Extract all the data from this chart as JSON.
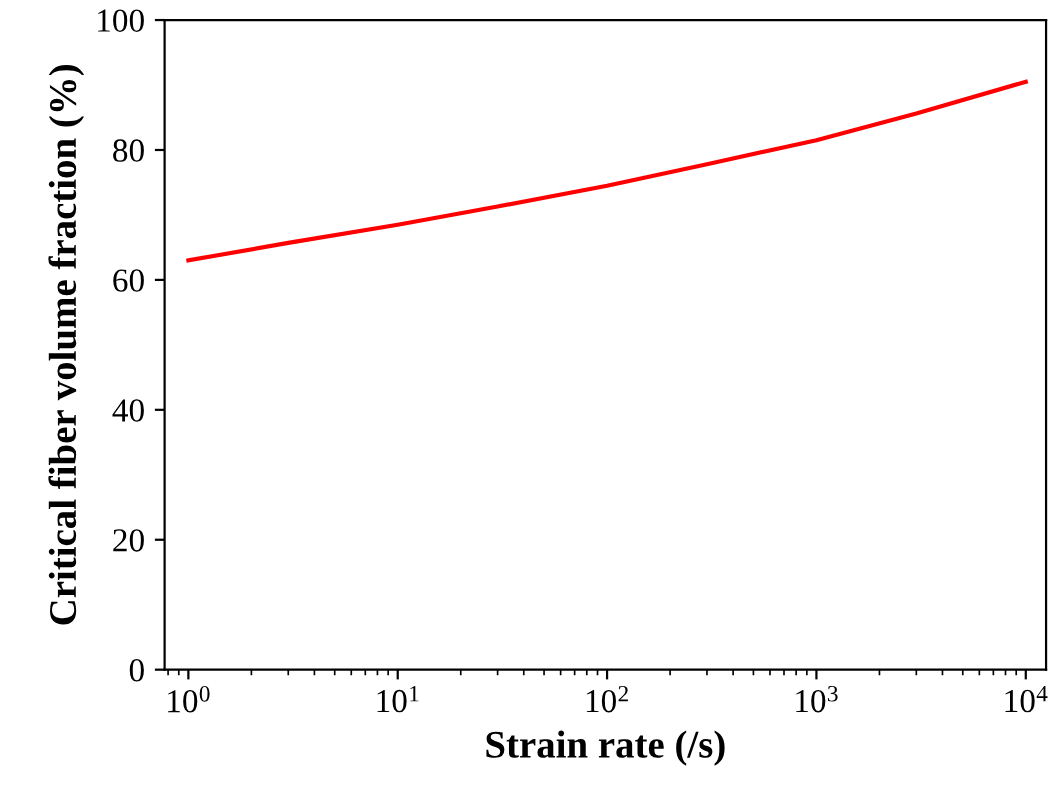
{
  "chart_data": {
    "type": "line",
    "xlabel": "Strain rate (/s)",
    "ylabel": "Critical fiber volume fraction (%)",
    "log": "x",
    "xlim": [
      0.77,
      12500
    ],
    "ylim": [
      0,
      100
    ],
    "xticks": [
      {
        "value": 1,
        "label": "10$^{0}$"
      },
      {
        "value": 10,
        "label": "10$^{1}$"
      },
      {
        "value": 100,
        "label": "10$^{2}$"
      },
      {
        "value": 1000,
        "label": "10$^{3}$"
      },
      {
        "value": 10000,
        "label": "10$^{4}$"
      }
    ],
    "yticks": [
      0,
      20,
      40,
      60,
      80,
      100
    ],
    "grid": false,
    "legend": false,
    "marker": "none",
    "line_style": "solid",
    "series": [
      {
        "color": "#ff0000",
        "x": [
          1,
          3,
          10,
          30,
          100,
          300,
          1000,
          3000,
          10000
        ],
        "values": [
          63,
          65.7,
          68.5,
          71.3,
          74.5,
          77.8,
          81.5,
          85.6,
          90.5
        ]
      }
    ]
  }
}
